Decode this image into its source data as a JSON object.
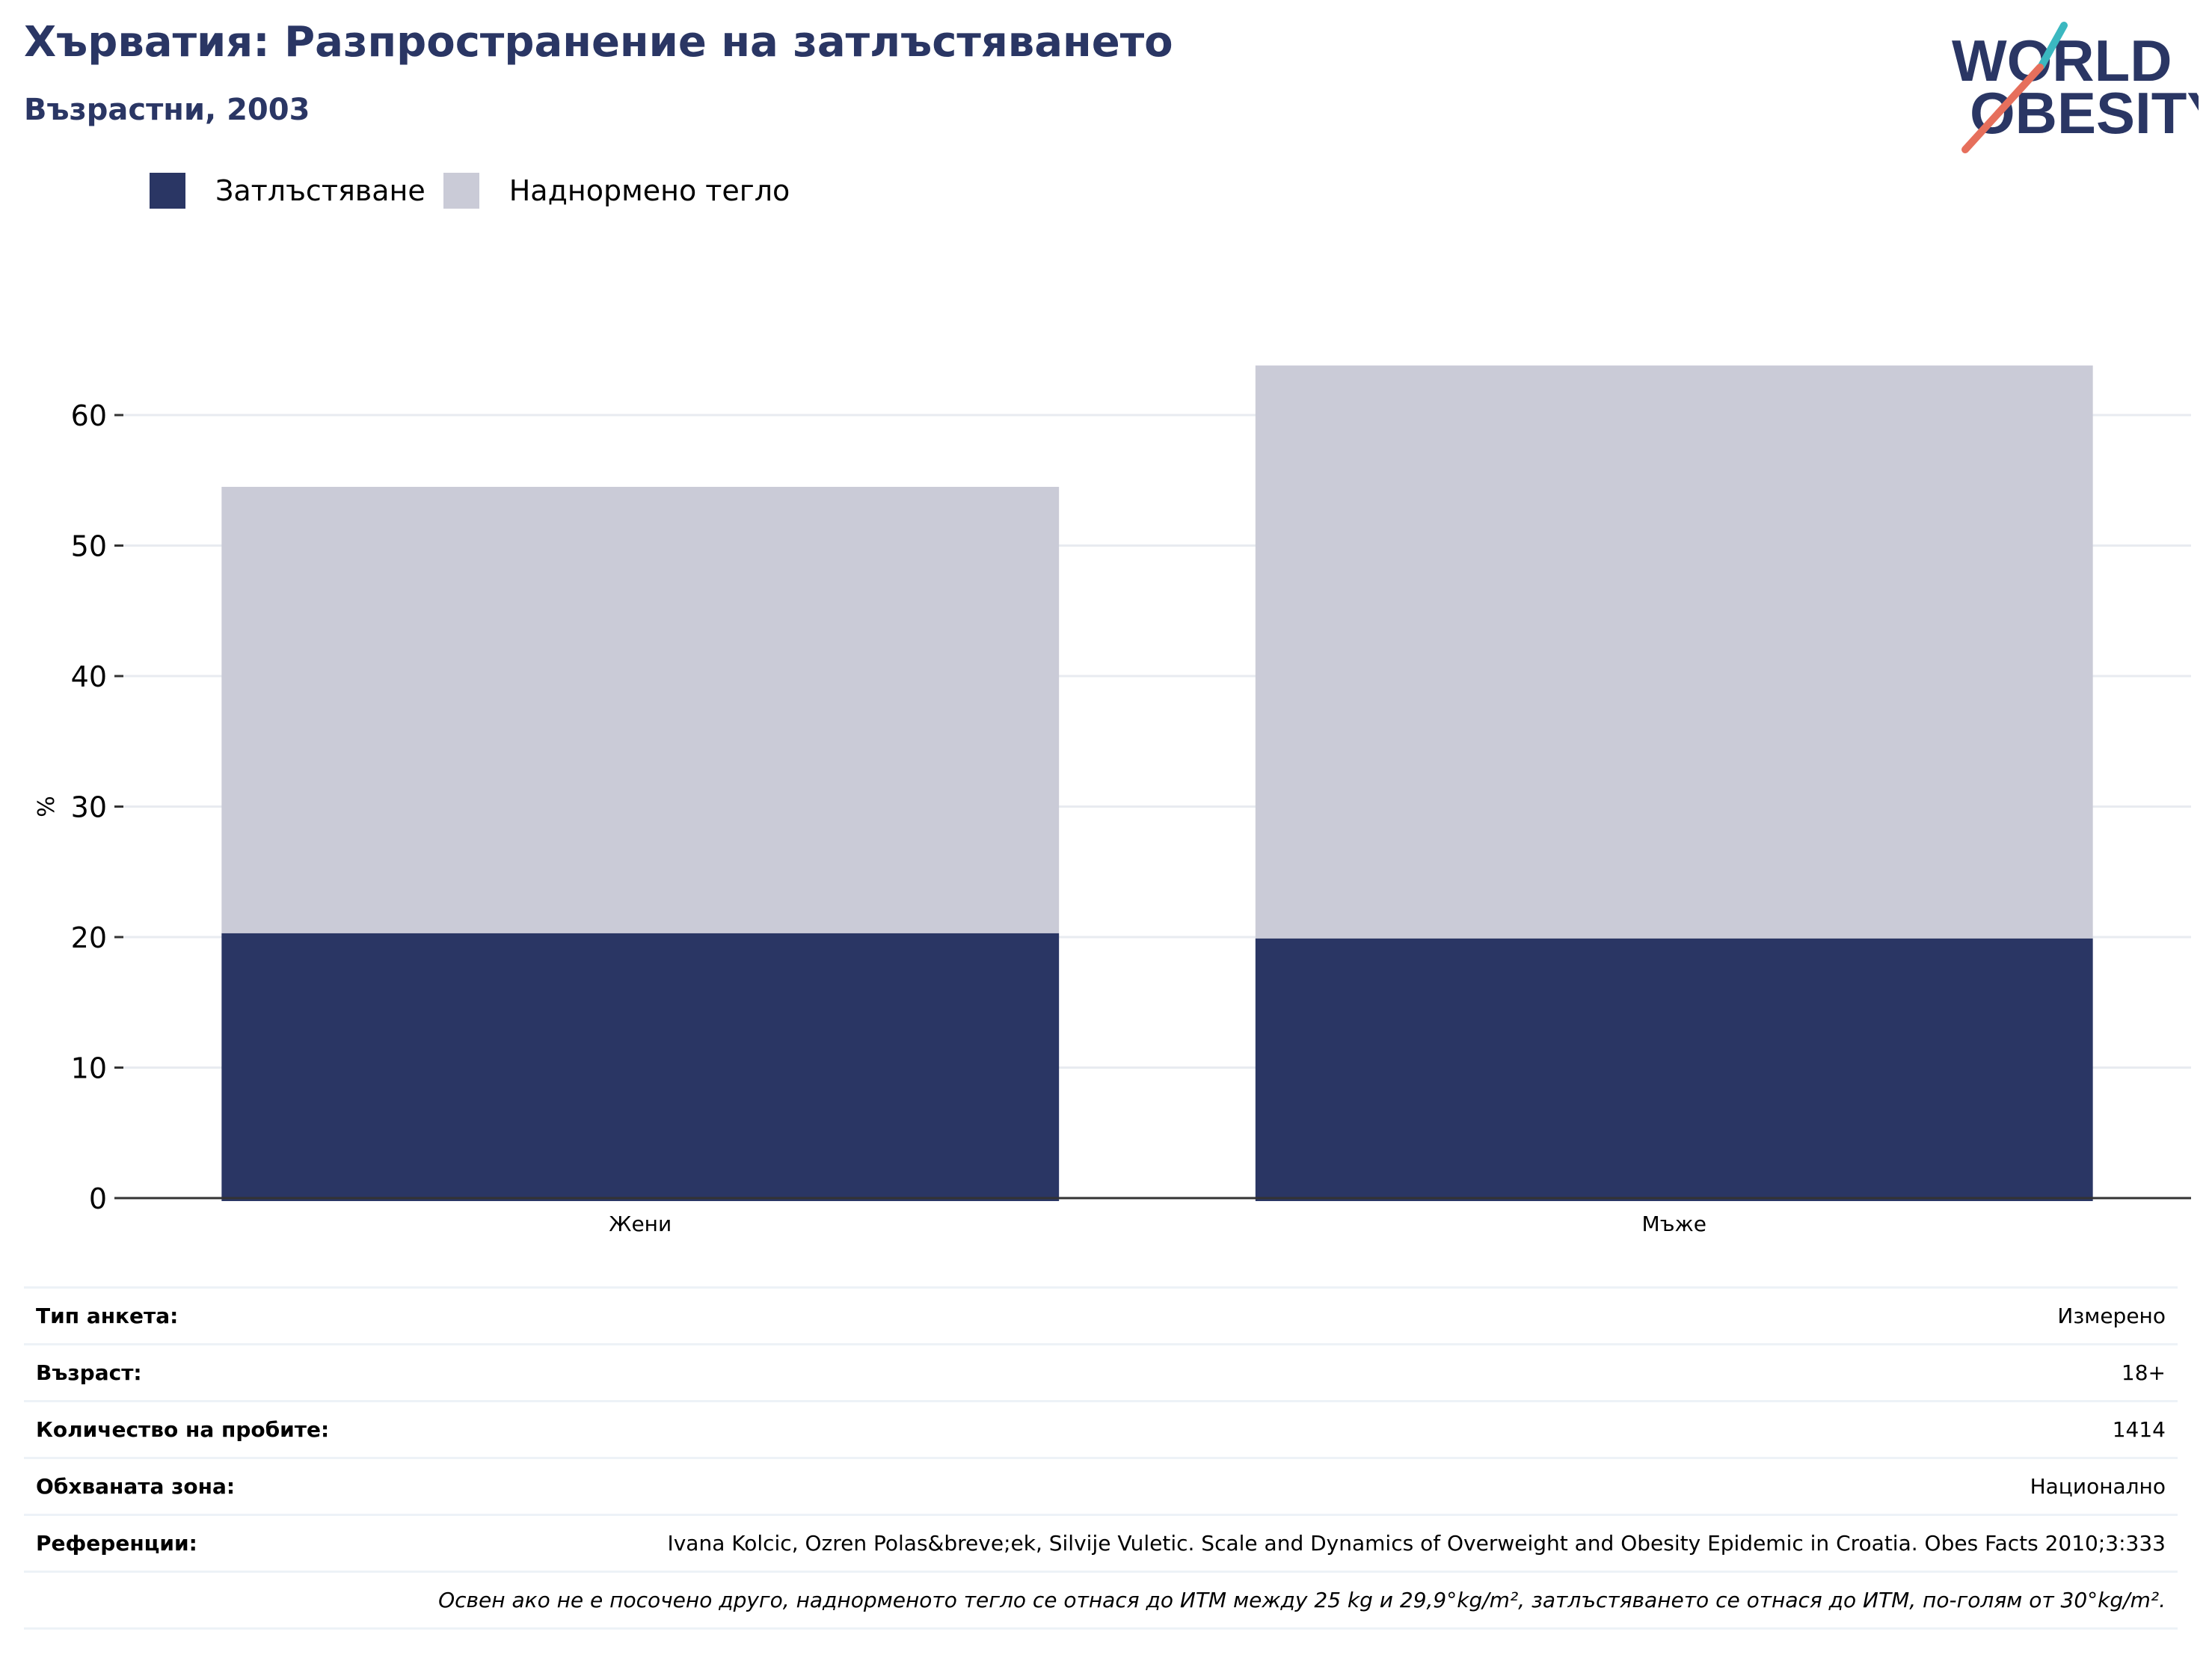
{
  "header": {
    "title": "Хърватия: Разпространение на затлъстяването",
    "subtitle": "Възрастни, 2003"
  },
  "logo": {
    "line1": "WORLD",
    "line2": "OBESITY"
  },
  "colors": {
    "obesity": "#2a3664",
    "overweight": "#cacbd7",
    "title": "#2a3664",
    "logo_teal": "#3bb8c0",
    "logo_coral": "#e66f5c"
  },
  "legend": [
    {
      "label": "Затлъстяване",
      "color": "#2a3664"
    },
    {
      "label": "Наднормено тегло",
      "color": "#cacbd7"
    }
  ],
  "chart_data": {
    "type": "bar",
    "stacked": true,
    "categories": [
      "Жени",
      "Мъже"
    ],
    "series": [
      {
        "name": "Затлъстяване",
        "values": [
          20.3,
          19.9
        ]
      },
      {
        "name": "Наднормено тегло",
        "values": [
          34.2,
          43.9
        ]
      }
    ],
    "ylabel": "%",
    "ylim": [
      0,
      70
    ],
    "yticks": [
      0,
      10,
      20,
      30,
      40,
      50,
      60
    ],
    "grid": true,
    "legend_position": "top-left"
  },
  "info": [
    {
      "label": "Тип анкета:",
      "value": "Измерено"
    },
    {
      "label": "Възраст:",
      "value": "18+"
    },
    {
      "label": "Количество на пробите:",
      "value": "1414"
    },
    {
      "label": "Обхваната зона:",
      "value": "Национално"
    },
    {
      "label": "Референции:",
      "value": "Ivana Kolcic, Ozren Polas&breve;ek, Silvije Vuletic. Scale and Dynamics of Overweight and Obesity Epidemic in Croatia. Obes Facts 2010;3:333"
    }
  ],
  "note": "Освен ако не е посочено друго, наднорменото тегло се отнася до ИТМ между 25 kg и 29,9°kg/m², затлъстяването се отнася до ИТМ, по-голям от 30°kg/m²."
}
